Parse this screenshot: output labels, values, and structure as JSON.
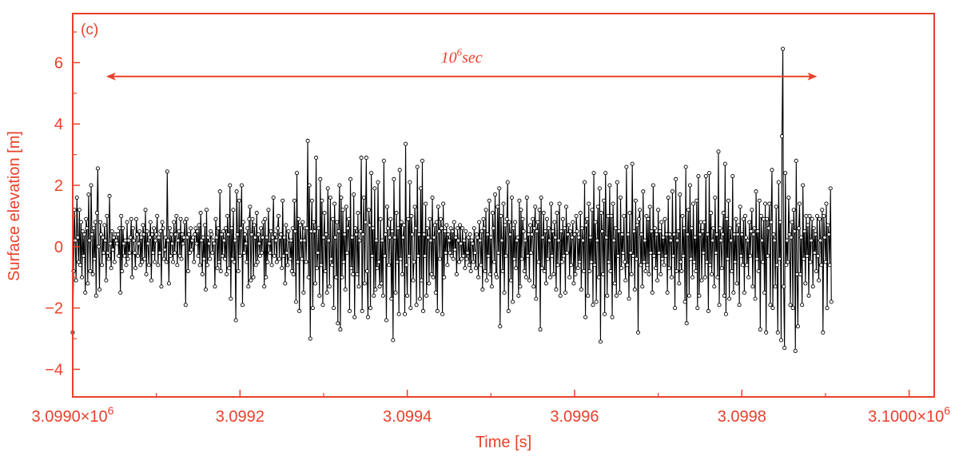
{
  "colors": {
    "frame": "#e8402a",
    "series": "#000000",
    "marker_fill": "#ffffff"
  },
  "chart_data": {
    "type": "line",
    "panel_label": "(c)",
    "xlabel": "Time [s]",
    "ylabel": "Surface elevation [m]",
    "xlim": [
      3099000,
      3100030
    ],
    "ylim": [
      -4.9,
      7.6
    ],
    "x_major_ticks": [
      3099000,
      3099200,
      3099400,
      3099600,
      3099800,
      3100000
    ],
    "x_tick_labels": [
      "3.0990×10",
      "3.0992",
      "3.0994",
      "3.0996",
      "3.0998",
      "3.1000×10"
    ],
    "x_tick_label_exponents": [
      "6",
      "",
      "",
      "",
      "",
      "6"
    ],
    "x_minor_step": 100,
    "y_major_ticks": [
      -4,
      -2,
      0,
      2,
      4,
      6
    ],
    "y_tick_labels": [
      "−4",
      "−2",
      "0",
      "2",
      "4",
      "6"
    ],
    "y_minor_step": 1,
    "marker": "open-circle",
    "annotation": {
      "base": "10",
      "exponent": "6",
      "unit": "sec",
      "arrow_from_x": 3099040,
      "arrow_to_x": 3099890,
      "y": 5.55
    },
    "series": [
      {
        "x_start": 3099000,
        "x_step": 1,
        "values": [
          -2.8,
          -0.8,
          1.2,
          0.2,
          -1.1,
          1.6,
          0.3,
          -0.5,
          1.2,
          -0.6,
          0.8,
          -1.0,
          0.5,
          -0.3,
          0.4,
          -1.5,
          0.9,
          0.6,
          -1.2,
          1.7,
          0.2,
          -0.8,
          2.0,
          0.4,
          -0.9,
          0.6,
          -0.4,
          0.8,
          -1.6,
          1.1,
          2.55,
          0.0,
          -1.4,
          0.8,
          0.4,
          -0.6,
          0.3,
          -0.2,
          0.7,
          0.2,
          -1.1,
          1.0,
          -0.2,
          -0.4,
          1.65,
          0.1,
          -0.7,
          0.5,
          -0.1,
          0.3,
          -0.5,
          0.4,
          0.2,
          0.1,
          0.4,
          -0.3,
          0.6,
          -1.5,
          1.0,
          -0.8,
          0.6,
          0.1,
          -0.3,
          0.2,
          -0.6,
          0.8,
          -0.4,
          0.2,
          -0.2,
          0.3,
          0.9,
          -1.0,
          0.6,
          0.2,
          -0.2,
          -0.7,
          0.9,
          0.4,
          -0.3,
          0.1,
          0.5,
          -0.6,
          0.3,
          -0.5,
          0.7,
          0.4,
          -0.4,
          1.2,
          -0.9,
          0.5,
          0.1,
          -0.6,
          0.3,
          0.8,
          -1.1,
          0.4,
          -0.2,
          0.6,
          -0.5,
          0.2,
          0.4,
          1.0,
          -0.6,
          0.3,
          -0.2,
          0.5,
          -1.3,
          0.8,
          0.6,
          -0.4,
          -0.1,
          0.3,
          -0.5,
          2.45,
          0.2,
          -1.2,
          0.6,
          -0.3,
          0.4,
          0.1,
          -0.5,
          0.8,
          -0.2,
          0.4,
          1.0,
          -0.6,
          0.2,
          0.5,
          -0.3,
          0.9,
          -0.4,
          0.4,
          0.1,
          0.3,
          0.8,
          -1.9,
          0.9,
          0.3,
          -0.8,
          0.4,
          -0.2,
          0.6,
          -0.1,
          0.2,
          0.3,
          -0.5,
          0.4,
          0.6,
          0.1,
          0.5,
          -0.3,
          0.7,
          -0.6,
          1.1,
          0.2,
          -0.9,
          0.3,
          -0.4,
          0.7,
          -1.4,
          1.2,
          -0.6,
          0.3,
          0.1,
          -0.4,
          0.5,
          0.4,
          -0.2,
          0.2,
          0.1,
          -1.3,
          0.9,
          0.3,
          -0.7,
          0.6,
          -0.5,
          1.8,
          -0.8,
          0.4,
          -0.3,
          0.5,
          0.2,
          -0.4,
          0.6,
          -0.9,
          1.0,
          0.4,
          -0.7,
          2.0,
          -1.7,
          0.6,
          -0.4,
          1.2,
          -0.5,
          0.2,
          -2.4,
          1.8,
          0.4,
          -0.8,
          1.5,
          -0.3,
          0.6,
          2.0,
          -1.9,
          0.8,
          -0.2,
          0.4,
          0.1,
          -0.5,
          0.6,
          -1.3,
          0.9,
          1.3,
          -1.1,
          0.4,
          0.9,
          -1.0,
          0.7,
          0.3,
          -0.6,
          1.1,
          -0.5,
          0.4,
          0.1,
          -0.3,
          0.6,
          -0.2,
          0.3,
          0.8,
          -1.3,
          0.9,
          -1.0,
          0.3,
          -0.5,
          1.2,
          0.1,
          -0.2,
          0.5,
          -0.6,
          0.3,
          1.6,
          -0.3,
          0.4,
          0.2,
          -0.5,
          0.6,
          1.0,
          -0.4,
          0.3,
          0.4,
          -0.7,
          1.5,
          -0.3,
          0.3,
          -1.2,
          0.7,
          -0.2,
          -0.6,
          0.5,
          0.2,
          -0.4,
          0.2,
          -0.8,
          0.6,
          -0.9,
          1.5,
          0.5,
          -1.8,
          2.4,
          -0.5,
          0.9,
          -2.1,
          0.7,
          0.2,
          -0.4,
          0.8,
          -1.5,
          0.2,
          0.6,
          -0.5,
          0.6,
          3.45,
          -1.0,
          2.0,
          -3.0,
          0.5,
          1.5,
          -2.0,
          0.8,
          0.5,
          -1.2,
          2.9,
          -0.7,
          -0.2,
          0.6,
          -1.6,
          2.2,
          -0.6,
          1.5,
          -1.9,
          0.3,
          1.1,
          -0.8,
          0.4,
          -1.5,
          1.9,
          0.2,
          -1.3,
          1.6,
          -0.4,
          -0.6,
          0.9,
          -2.0,
          1.4,
          0.3,
          -1.0,
          0.8,
          -2.5,
          0.5,
          2.0,
          -2.7,
          1.6,
          -1.0,
          1.2,
          -0.5,
          0.4,
          -1.4,
          1.3,
          -0.2,
          0.6,
          0.9,
          -2.1,
          2.2,
          -0.7,
          0.3,
          -0.9,
          1.7,
          -2.3,
          0.6,
          0.4,
          -0.9,
          1.1,
          -1.3,
          0.2,
          0.5,
          2.9,
          -2.1,
          0.4,
          1.6,
          -1.2,
          0.8,
          2.9,
          -0.8,
          -2.3,
          1.2,
          0.7,
          -2.0,
          2.4,
          -0.3,
          0.6,
          -1.6,
          1.9,
          -1.4,
          0.2,
          -0.7,
          2.1,
          -0.5,
          -1.3,
          0.9,
          -1.2,
          0.2,
          -1.6,
          2.8,
          -0.3,
          0.4,
          -2.4,
          1.3,
          0.6,
          -0.6,
          0.3,
          0.9,
          -1.7,
          0.5,
          -3.05,
          2.2,
          0.3,
          -1.5,
          1.1,
          -0.5,
          0.6,
          -2.2,
          2.5,
          -0.4,
          0.8,
          -0.9,
          0.3,
          0.7,
          -2.2,
          3.35,
          -0.6,
          -1.6,
          0.9,
          -0.3,
          2.1,
          -2.0,
          1.0,
          0.4,
          -1.1,
          -0.5,
          1.3,
          0.6,
          -1.9,
          2.6,
          -0.3,
          0.4,
          -1.7,
          1.9,
          -1.1,
          2.8,
          -2.1,
          0.4,
          -0.3,
          1.4,
          -1.6,
          0.6,
          0.3,
          -1.2,
          0.9,
          0.2,
          -0.9,
          1.6,
          -1.0,
          0.3,
          0.7,
          -1.5,
          0.8,
          -2.1,
          1.3,
          0.5,
          -0.4,
          0.9,
          0.6,
          -2.2,
          1.4,
          -1.0,
          0.5,
          -0.2,
          0.7,
          -0.6,
          0.4,
          0.2,
          -0.2,
          0.6,
          -0.3,
          0.5,
          -0.4,
          0.8,
          -0.1,
          0.3,
          -0.9,
          0.6,
          0.2,
          -0.5,
          0.7,
          0.1,
          -0.4,
          0.6,
          -0.3,
          0.2,
          -0.7,
          0.5,
          -0.4,
          -0.2,
          0.3,
          -0.6,
          0.4,
          -0.8,
          0.2,
          0.1,
          -0.5,
          0.6,
          -0.2,
          -0.7,
          0.4,
          0.3,
          -1.0,
          0.8,
          0.2,
          -0.6,
          0.5,
          -1.4,
          0.9,
          0.6,
          -0.8,
          1.2,
          -1.1,
          0.4,
          -0.3,
          1.5,
          -0.9,
          0.3,
          -1.3,
          1.1,
          0.6,
          -0.5,
          1.7,
          -0.9,
          -1.0,
          1.3,
          -0.2,
          1.9,
          -2.6,
          1.0,
          0.2,
          -0.8,
          1.4,
          -1.5,
          0.7,
          -0.3,
          0.9,
          2.1,
          -2.1,
          0.8,
          0.4,
          -1.1,
          1.6,
          -1.8,
          0.6,
          -0.4,
          0.8,
          -0.7,
          0.2,
          0.3,
          -1.6,
          1.5,
          -1.3,
          1.2,
          -0.4,
          0.9,
          0.5,
          -0.8,
          0.2,
          -1.0,
          1.6,
          -0.3,
          0.4,
          -1.1,
          0.7,
          -0.2,
          0.4,
          0.9,
          -1.3,
          0.6,
          1.3,
          -1.7,
          0.5,
          0.8,
          -0.5,
          1.2,
          -2.7,
          1.6,
          -0.7,
          0.3,
          1.1,
          -0.8,
          0.5,
          -1.2,
          0.9,
          -0.4,
          0.6,
          0.2,
          -1.0,
          1.4,
          -0.3,
          0.5,
          -0.9,
          0.8,
          0.3,
          -1.4,
          1.1,
          -0.6,
          0.2,
          1.4,
          -1.6,
          0.5,
          -0.5,
          0.9,
          -0.3,
          0.6,
          -1.5,
          1.3,
          -0.2,
          0.4,
          0.7,
          -1.0,
          0.5,
          -0.6,
          0.3,
          0.8,
          -1.2,
          0.4,
          -0.9,
          1.0,
          0.5,
          -0.7,
          0.3,
          -0.5,
          1.1,
          -1.4,
          0.6,
          0.2,
          -0.8,
          2.1,
          -2.3,
          0.7,
          0.9,
          -1.6,
          1.4,
          -0.8,
          0.3,
          -0.5,
          1.2,
          -1.9,
          2.4,
          -0.6,
          0.8,
          -1.8,
          0.2,
          1.3,
          -1.0,
          1.9,
          -3.1,
          1.1,
          0.5,
          -0.9,
          1.5,
          -2.2,
          2.4,
          0.3,
          -1.6,
          1.0,
          -0.5,
          2.0,
          -0.8,
          1.0,
          -2.3,
          1.4,
          0.2,
          -1.2,
          0.6,
          -1.6,
          2.1,
          -0.3,
          0.5,
          -1.5,
          1.6,
          -0.7,
          0.4,
          -0.2,
          1.0,
          -0.5,
          -1.1,
          2.6,
          -0.6,
          0.4,
          -1.7,
          1.1,
          -0.2,
          -0.9,
          2.7,
          -0.3,
          0.5,
          -1.4,
          1.5,
          -0.4,
          0.7,
          -2.8,
          0.9,
          1.2,
          -0.6,
          0.4,
          -1.3,
          1.8,
          -0.5,
          0.2,
          -0.8,
          1.0,
          -0.6,
          0.9,
          -0.9,
          1.3,
          -0.2,
          0.5,
          -1.5,
          2.0,
          -0.3,
          0.6,
          -0.7,
          0.4,
          -1.1,
          1.2,
          -0.2,
          0.5,
          -0.9,
          0.8,
          -0.4,
          0.3,
          -0.6,
          0.9,
          -0.3,
          0.4,
          -1.5,
          1.6,
          -0.7,
          0.4,
          0.2,
          -1.0,
          1.8,
          -0.3,
          0.4,
          -2.0,
          2.2,
          -0.8,
          0.2,
          0.5,
          -1.2,
          1.7,
          -0.5,
          -0.8,
          1.0,
          -0.3,
          0.6,
          -1.8,
          2.6,
          -2.5,
          0.4,
          1.2,
          -1.6,
          2.0,
          -0.4,
          0.6,
          -1.0,
          1.4,
          -0.5,
          0.3,
          -0.8,
          1.5,
          -2.0,
          2.3,
          -1.6,
          0.4,
          0.8,
          -1.1,
          0.5,
          -0.2,
          0.8,
          -1.0,
          2.3,
          -0.5,
          0.4,
          -2.1,
          2.4,
          -0.6,
          1.1,
          -0.9,
          0.2,
          0.6,
          -1.3,
          1.6,
          -0.2,
          0.4,
          -1.0,
          3.1,
          -1.9,
          0.6,
          0.2,
          -0.7,
          0.4,
          1.1,
          -1.6,
          2.7,
          -2.2,
          0.9,
          -0.4,
          1.5,
          -1.7,
          0.6,
          0.2,
          -0.8,
          2.3,
          -1.5,
          0.4,
          -0.5,
          0.9,
          -1.2,
          0.4,
          0.7,
          -1.9,
          1.3,
          -0.3,
          0.4,
          -0.6,
          0.9,
          -1.5,
          1.0,
          0.3,
          -0.6,
          0.2,
          -1.0,
          0.8,
          -0.3,
          0.5,
          1.2,
          -1.3,
          0.4,
          0.6,
          -1.7,
          1.8,
          -0.4,
          0.5,
          -0.8,
          1.5,
          -2.7,
          1.0,
          0.2,
          -0.5,
          0.9,
          -1.5,
          1.4,
          -2.8,
          0.9,
          -0.3,
          0.6,
          1.4,
          -1.9,
          0.8,
          2.5,
          -2.0,
          0.4,
          0.2,
          -1.3,
          1.3,
          -0.6,
          -2.8,
          2.1,
          -0.4,
          0.8,
          -3.05,
          3.6,
          6.45,
          -1.3,
          -3.3,
          2.4,
          -0.6,
          0.2,
          -0.5,
          1.6,
          0.4,
          -1.9,
          0.3,
          0.8,
          -2.0,
          1.2,
          0.5,
          -3.4,
          2.8,
          -0.9,
          -2.6,
          0.6,
          1.4,
          -0.9,
          0.3,
          -1.9,
          2.0,
          -0.4,
          0.5,
          -1.2,
          1.0,
          -0.3,
          0.7,
          -1.6,
          1.0,
          -0.5,
          0.2,
          0.9,
          -1.3,
          0.6,
          -0.2,
          0.4,
          -0.8,
          1.0,
          -0.3,
          -1.1,
          0.9,
          0.2,
          -0.6,
          1.2,
          -2.8,
          1.0,
          0.3,
          -0.5,
          1.4,
          -2.0,
          0.7,
          0.4,
          -0.6,
          1.9,
          -1.8
        ]
      }
    ]
  }
}
